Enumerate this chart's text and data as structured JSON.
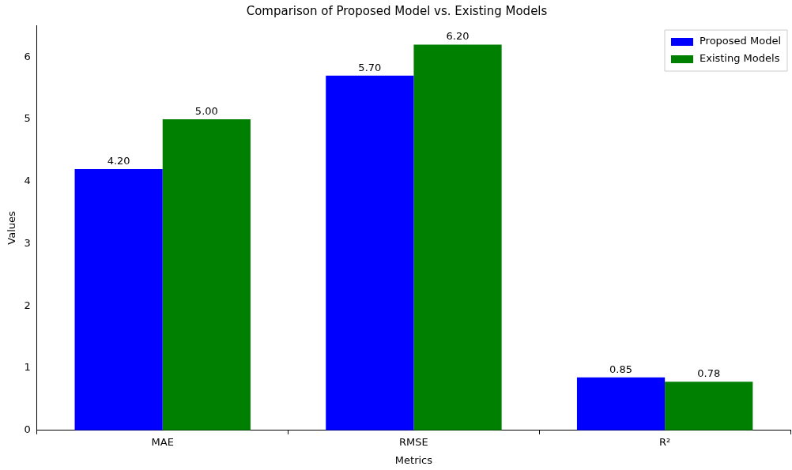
{
  "chart_data": {
    "type": "bar",
    "title": "Comparison of Proposed Model vs. Existing Models",
    "xlabel": "Metrics",
    "ylabel": "Values",
    "categories": [
      "MAE",
      "RMSE",
      "R²"
    ],
    "series": [
      {
        "name": "Proposed Model",
        "color": "#0000ff",
        "values": [
          4.2,
          5.7,
          0.85
        ],
        "value_labels": [
          "4.20",
          "5.70",
          "0.85"
        ]
      },
      {
        "name": "Existing Models",
        "color": "#008000",
        "values": [
          5.0,
          6.2,
          0.78
        ],
        "value_labels": [
          "5.00",
          "6.20",
          "0.78"
        ]
      }
    ],
    "ylim": [
      0,
      6.51
    ],
    "yticks": [
      0,
      1,
      2,
      3,
      4,
      5,
      6
    ],
    "grid": false,
    "legend": "top right"
  }
}
